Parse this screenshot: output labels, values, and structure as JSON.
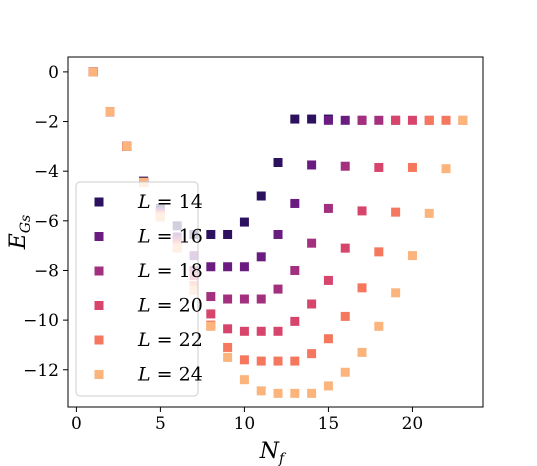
{
  "chart_data": {
    "type": "scatter",
    "xlabel_main": "N",
    "xlabel_sub": "f",
    "ylabel_main": "E",
    "ylabel_sub": "Gs",
    "xlim": [
      -0.5,
      24.2
    ],
    "ylim": [
      -13.5,
      0.6
    ],
    "xticks": [
      0,
      5,
      10,
      15,
      20
    ],
    "yticks": [
      0,
      -2,
      -4,
      -6,
      -8,
      -10,
      -12
    ],
    "ytick_labels": [
      "0",
      "−2",
      "−4",
      "−6",
      "−8",
      "−10",
      "−12"
    ],
    "legend_placement": "center-left",
    "series": [
      {
        "name": "L = 14",
        "color": "#2c115f",
        "x": [
          1,
          2,
          3,
          4,
          5,
          6,
          7,
          8,
          9,
          10,
          11,
          12,
          13,
          14,
          15
        ],
        "y": [
          0,
          -1.6,
          -3.0,
          -4.4,
          -5.5,
          -6.2,
          -6.55,
          -6.55,
          -6.55,
          -6.05,
          -5.0,
          -3.65,
          -1.9,
          -1.9,
          -1.9
        ]
      },
      {
        "name": "L = 16",
        "color": "#6a1c81",
        "x": [
          1,
          2,
          3,
          4,
          5,
          6,
          7,
          8,
          9,
          10,
          11,
          12,
          13,
          14,
          15,
          16,
          17
        ],
        "y": [
          0,
          -1.6,
          -3.0,
          -4.45,
          -5.65,
          -6.65,
          -7.4,
          -7.85,
          -7.85,
          -7.85,
          -7.45,
          -6.55,
          -5.3,
          -3.75,
          -1.95,
          -1.95,
          -1.95
        ]
      },
      {
        "name": "L = 18",
        "color": "#a3307e",
        "x": [
          1,
          2,
          3,
          4,
          5,
          6,
          7,
          8,
          9,
          10,
          11,
          12,
          13,
          14,
          15,
          16,
          17,
          18,
          19
        ],
        "y": [
          0,
          -1.6,
          -3.0,
          -4.45,
          -5.7,
          -6.8,
          -8.0,
          -9.05,
          -9.15,
          -9.15,
          -9.15,
          -8.75,
          -8.0,
          -6.9,
          -5.5,
          -3.8,
          -1.95,
          -1.95,
          -1.95
        ]
      },
      {
        "name": "L = 20",
        "color": "#d8456c",
        "x": [
          1,
          2,
          3,
          4,
          5,
          6,
          7,
          8,
          9,
          10,
          11,
          12,
          13,
          14,
          15,
          16,
          17,
          18,
          19,
          20,
          21
        ],
        "y": [
          0,
          -1.6,
          -3.0,
          -4.45,
          -5.75,
          -6.9,
          -8.2,
          -9.75,
          -10.35,
          -10.45,
          -10.45,
          -10.45,
          -10.05,
          -9.35,
          -8.4,
          -7.1,
          -5.6,
          -3.85,
          -1.95,
          -1.95,
          -1.95
        ]
      },
      {
        "name": "L = 22",
        "color": "#f4775e",
        "x": [
          1,
          2,
          3,
          4,
          5,
          6,
          7,
          8,
          9,
          10,
          11,
          12,
          13,
          14,
          15,
          16,
          17,
          18,
          19,
          20,
          21,
          22,
          23
        ],
        "y": [
          0,
          -1.6,
          -3.0,
          -4.45,
          -5.8,
          -7.0,
          -8.6,
          -10.2,
          -11.1,
          -11.6,
          -11.65,
          -11.65,
          -11.65,
          -11.35,
          -10.75,
          -9.85,
          -8.7,
          -7.25,
          -5.65,
          -3.85,
          -1.95,
          -1.95,
          -1.95
        ]
      },
      {
        "name": "L = 24",
        "color": "#fbb47c",
        "x": [
          1,
          2,
          3,
          4,
          5,
          6,
          7,
          8,
          9,
          10,
          11,
          12,
          13,
          14,
          15,
          16,
          17,
          18,
          19,
          20,
          21,
          22,
          23
        ],
        "y": [
          0,
          -1.6,
          -3.0,
          -4.45,
          -5.85,
          -7.1,
          -8.8,
          -10.25,
          -11.5,
          -12.4,
          -12.85,
          -12.95,
          -12.95,
          -12.95,
          -12.65,
          -12.1,
          -11.3,
          -10.25,
          -8.9,
          -7.4,
          -5.7,
          -3.9,
          -1.95
        ]
      }
    ]
  }
}
